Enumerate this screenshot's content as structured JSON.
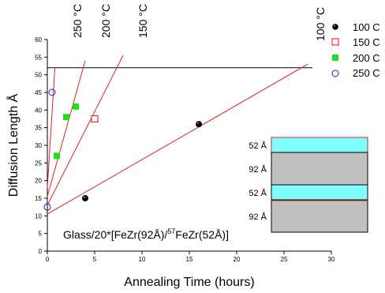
{
  "chart_data": {
    "type": "scatter",
    "xlabel": "Annealing Time (hours)",
    "ylabel": "Diffusion Length Å",
    "xlim": [
      0,
      30
    ],
    "ylim": [
      0,
      60
    ],
    "xticks": [
      "0",
      "5",
      "10",
      "15",
      "20",
      "25",
      "30"
    ],
    "yticks": [
      "0",
      "5",
      "10",
      "15",
      "20",
      "25",
      "30",
      "35",
      "40",
      "45",
      "50",
      "55",
      "60"
    ],
    "grid": false,
    "legend_position": "top-right",
    "series": [
      {
        "name": "100 C",
        "marker": "ball",
        "color": "#000000",
        "points": [
          [
            4,
            15
          ],
          [
            16,
            36
          ]
        ]
      },
      {
        "name": "150 C",
        "marker": "open-square",
        "color": "#e02020",
        "points": [
          [
            5,
            37.5
          ]
        ]
      },
      {
        "name": "200 C",
        "marker": "filled-square",
        "color": "#22dd22",
        "points": [
          [
            1,
            27
          ],
          [
            2,
            38
          ],
          [
            3,
            41
          ]
        ]
      },
      {
        "name": "250 C",
        "marker": "open-circle",
        "color": "#1a1acc",
        "points": [
          [
            0,
            12.5
          ],
          [
            0.5,
            45
          ]
        ]
      }
    ],
    "fit_lines": [
      {
        "x": [
          0,
          27.5
        ],
        "y": [
          10.5,
          53
        ],
        "color": "#e02020"
      },
      {
        "x": [
          0,
          8
        ],
        "y": [
          13,
          55.5
        ],
        "color": "#e02020"
      },
      {
        "x": [
          0,
          4
        ],
        "y": [
          15.5,
          54
        ],
        "color": "#e02020"
      },
      {
        "x": [
          0,
          0.8
        ],
        "y": [
          18,
          52
        ],
        "color": "#e02020"
      }
    ],
    "reference_line": {
      "y": 52,
      "x": [
        0,
        28
      ],
      "color": "#000000"
    },
    "line_annotations": [
      "250 °C",
      "200 °C",
      "150 °C",
      "100 °C"
    ],
    "sample_label": {
      "main": "Glass/20*[FeZr(92Å)/",
      "superscript": "57",
      "tail": "FeZr(52Å)]"
    },
    "inset": {
      "layers": [
        {
          "label": "52 Å",
          "color": "#80ffff"
        },
        {
          "label": "92 Å",
          "color": "#c0c0c0"
        },
        {
          "label": "52 Å",
          "color": "#80ffff"
        },
        {
          "label": "92 Å",
          "color": "#c0c0c0"
        }
      ],
      "border_highlight": "#e02020"
    }
  }
}
